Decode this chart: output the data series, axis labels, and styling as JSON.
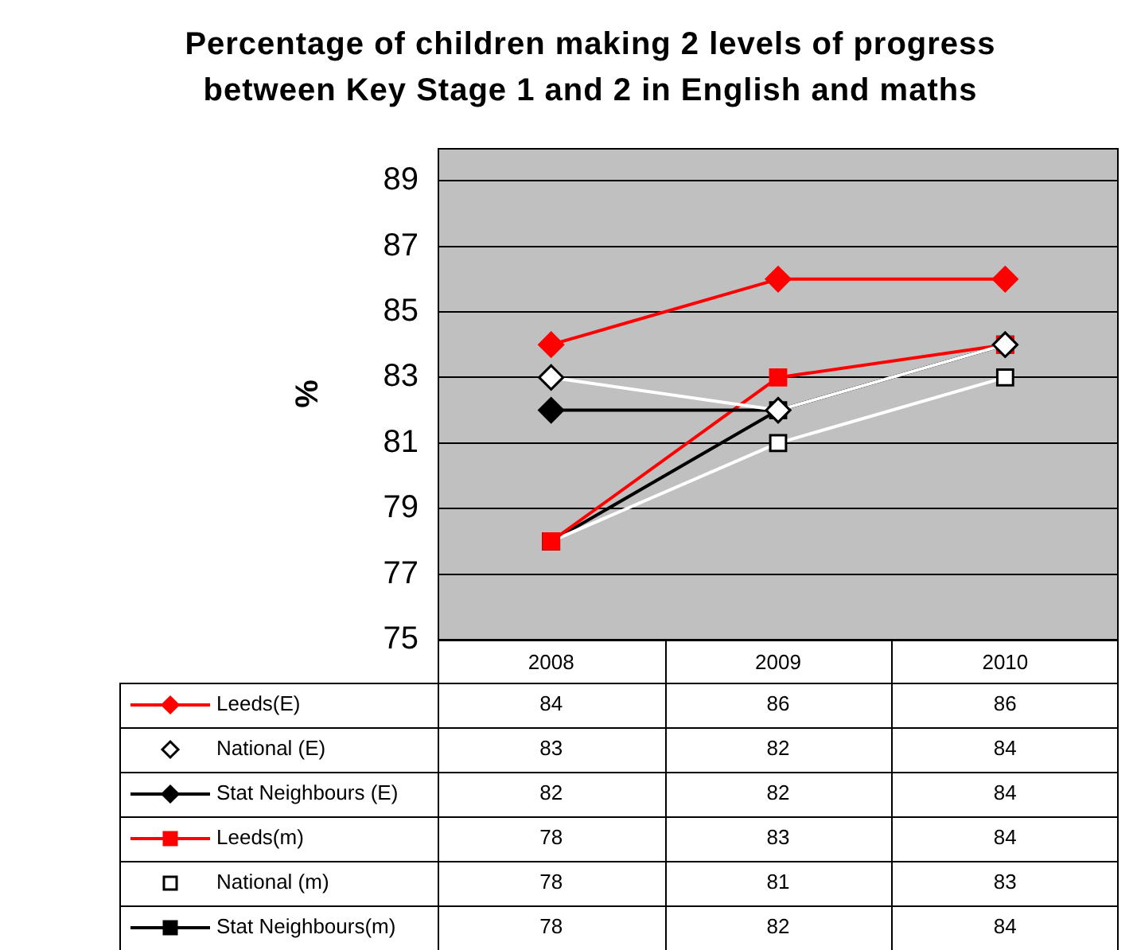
{
  "chart_data": {
    "type": "line",
    "title": "Percentage of children making 2 levels of progress between Key Stage 1 and 2 in English and maths",
    "ylabel": "%",
    "categories": [
      "2008",
      "2009",
      "2010"
    ],
    "series": [
      {
        "name": "Leeds(E)",
        "color": "#ff0000",
        "marker": "diamond",
        "values": [
          84,
          86,
          86
        ]
      },
      {
        "name": "National (E)",
        "color": "#ffffff",
        "marker": "diamond",
        "values": [
          83,
          82,
          84
        ]
      },
      {
        "name": "Stat Neighbours (E)",
        "color": "#000000",
        "marker": "diamond",
        "values": [
          82,
          82,
          84
        ]
      },
      {
        "name": "Leeds(m)",
        "color": "#ff0000",
        "marker": "square",
        "values": [
          78,
          83,
          84
        ]
      },
      {
        "name": "National (m)",
        "color": "#ffffff",
        "marker": "square",
        "values": [
          78,
          81,
          83
        ]
      },
      {
        "name": "Stat Neighbours(m)",
        "color": "#000000",
        "marker": "square",
        "values": [
          78,
          82,
          84
        ]
      }
    ],
    "ylim": [
      75,
      90
    ],
    "yticks": [
      75,
      77,
      79,
      81,
      83,
      85,
      87,
      89
    ],
    "grid": "y",
    "legend": "bottom",
    "data_labels": true
  }
}
